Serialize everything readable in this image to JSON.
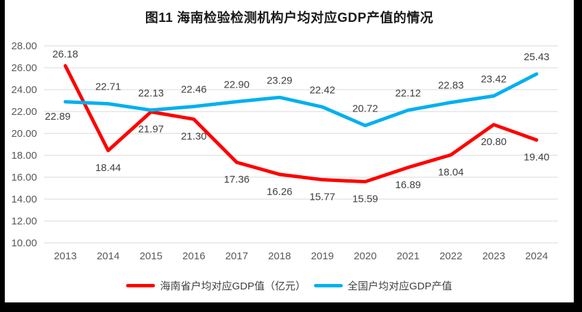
{
  "page": {
    "frame_color": "#000000",
    "canvas_color": "#ffffff"
  },
  "chart_data": {
    "type": "line",
    "title": "图11 海南检验检测机构户均对应GDP产值的情况",
    "categories": [
      "2013",
      "2014",
      "2015",
      "2016",
      "2017",
      "2018",
      "2019",
      "2020",
      "2021",
      "2022",
      "2023",
      "2024"
    ],
    "series": [
      {
        "name": "海南省户均对应GDP值（亿元）",
        "color": "#FF0000",
        "values": [
          26.18,
          18.44,
          21.97,
          21.3,
          17.36,
          16.26,
          15.77,
          15.59,
          16.89,
          18.04,
          20.8,
          19.4
        ]
      },
      {
        "name": "全国户均对应GDP产值",
        "color": "#00B0F0",
        "values": [
          22.89,
          22.71,
          22.13,
          22.46,
          22.9,
          23.29,
          22.42,
          20.72,
          22.12,
          22.83,
          23.42,
          25.43
        ]
      }
    ],
    "xlabel": "",
    "ylabel": "",
    "ylim": [
      10,
      28
    ],
    "ytick_step": 2,
    "y_tick_labels": [
      "28.00",
      "26.00",
      "24.00",
      "22.00",
      "20.00",
      "18.00",
      "16.00",
      "14.00",
      "12.00",
      "10.00"
    ],
    "grid": "horizontal",
    "data_labels_visible": true,
    "decimals": 2,
    "legend_position": "bottom",
    "styles": {
      "gridline_color": "#D9D9D9",
      "axis_label_color": "#595959",
      "data_label_color": "#404040",
      "title_color": "#1A1A1A"
    }
  }
}
